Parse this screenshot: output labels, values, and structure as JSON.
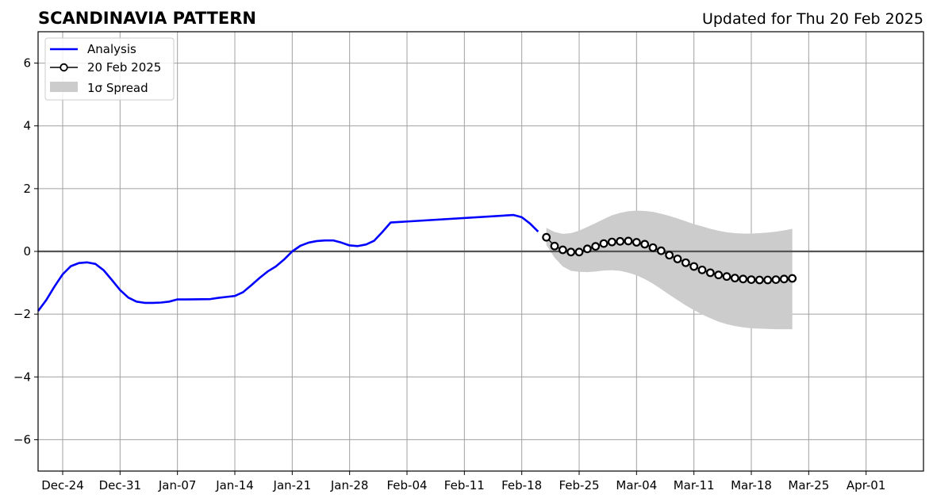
{
  "chart_data": {
    "type": "line",
    "title": "SCANDINAVIA PATTERN",
    "subtitle": "Updated for Thu 20 Feb 2025",
    "xlabel": "",
    "ylabel": "",
    "year": 2025,
    "xlim": [
      "2024-12-21",
      "2025-04-08"
    ],
    "ylim": [
      -7,
      7
    ],
    "y_ticks": [
      "6",
      "4",
      "2",
      "0",
      "−2",
      "−4",
      "−6"
    ],
    "y_tick_values": [
      6,
      4,
      2,
      0,
      -2,
      -4,
      -6
    ],
    "x_tick_dates": [
      "2024-12-24",
      "2024-12-31",
      "2025-01-07",
      "2025-01-14",
      "2025-01-21",
      "2025-01-28",
      "2025-02-04",
      "2025-02-11",
      "2025-02-18",
      "2025-02-25",
      "2025-03-04",
      "2025-03-11",
      "2025-03-18",
      "2025-03-25",
      "2025-04-01"
    ],
    "x_tick_labels": [
      "Dec-24",
      "Dec-31",
      "Jan-07",
      "Jan-14",
      "Jan-21",
      "Jan-28",
      "Feb-04",
      "Feb-11",
      "Feb-18",
      "Feb-25",
      "Mar-04",
      "Mar-11",
      "Mar-18",
      "Mar-25",
      "Apr-01"
    ],
    "grid": true,
    "zero_line": true,
    "legend_position": "top-left",
    "legend": [
      "Analysis",
      "20 Feb 2025",
      "1σ Spread"
    ],
    "colors": {
      "analysis": "#0000ff",
      "forecast_line": "#000000",
      "forecast_marker_fill": "#ffffff",
      "spread": "#cccccc",
      "grid": "#a0a0a0"
    },
    "series": [
      {
        "name": "Analysis",
        "x": [
          "2024-12-21",
          "2024-12-22",
          "2024-12-23",
          "2024-12-24",
          "2024-12-25",
          "2024-12-26",
          "2024-12-27",
          "2024-12-28",
          "2024-12-29",
          "2024-12-30",
          "2024-12-31",
          "2025-01-01",
          "2025-01-02",
          "2025-01-03",
          "2025-01-04",
          "2025-01-05",
          "2025-01-06",
          "2025-01-07",
          "2025-01-08",
          "2025-01-11",
          "2025-01-12",
          "2025-01-13",
          "2025-01-14",
          "2025-01-15",
          "2025-01-16",
          "2025-01-17",
          "2025-01-18",
          "2025-01-19",
          "2025-01-20",
          "2025-01-21",
          "2025-01-22",
          "2025-01-23",
          "2025-01-24",
          "2025-01-25",
          "2025-01-26",
          "2025-01-27",
          "2025-01-28",
          "2025-01-29",
          "2025-01-30",
          "2025-01-31",
          "2025-02-01",
          "2025-02-02",
          "2025-02-17",
          "2025-02-18",
          "2025-02-19",
          "2025-02-20"
        ],
        "y": [
          -1.9,
          -1.55,
          -1.12,
          -0.73,
          -0.47,
          -0.37,
          -0.35,
          -0.4,
          -0.6,
          -0.91,
          -1.23,
          -1.47,
          -1.6,
          -1.64,
          -1.64,
          -1.63,
          -1.6,
          -1.53,
          -1.53,
          -1.52,
          -1.48,
          -1.45,
          -1.42,
          -1.3,
          -1.08,
          -0.85,
          -0.64,
          -0.48,
          -0.26,
          0.0,
          0.18,
          0.28,
          0.33,
          0.35,
          0.35,
          0.28,
          0.19,
          0.17,
          0.22,
          0.34,
          0.62,
          0.92,
          1.16,
          1.09,
          0.89,
          0.63
        ]
      },
      {
        "name": "20 Feb 2025",
        "x": [
          "2025-02-21",
          "2025-02-22",
          "2025-02-23",
          "2025-02-24",
          "2025-02-25",
          "2025-02-26",
          "2025-02-27",
          "2025-02-28",
          "2025-03-01",
          "2025-03-02",
          "2025-03-03",
          "2025-03-04",
          "2025-03-05",
          "2025-03-06",
          "2025-03-07",
          "2025-03-08",
          "2025-03-09",
          "2025-03-10",
          "2025-03-11",
          "2025-03-12",
          "2025-03-13",
          "2025-03-14",
          "2025-03-15",
          "2025-03-16",
          "2025-03-17",
          "2025-03-18",
          "2025-03-19",
          "2025-03-20",
          "2025-03-21",
          "2025-03-22",
          "2025-03-23"
        ],
        "y": [
          0.45,
          0.17,
          0.05,
          -0.02,
          -0.02,
          0.08,
          0.16,
          0.25,
          0.3,
          0.32,
          0.33,
          0.29,
          0.23,
          0.12,
          0.02,
          -0.12,
          -0.24,
          -0.36,
          -0.48,
          -0.59,
          -0.68,
          -0.75,
          -0.8,
          -0.85,
          -0.88,
          -0.9,
          -0.91,
          -0.91,
          -0.9,
          -0.88,
          -0.86
        ]
      }
    ],
    "spread": {
      "name": "1σ Spread",
      "x": [
        "2025-02-21",
        "2025-02-22",
        "2025-02-23",
        "2025-02-24",
        "2025-02-25",
        "2025-02-26",
        "2025-02-27",
        "2025-02-28",
        "2025-03-01",
        "2025-03-02",
        "2025-03-03",
        "2025-03-04",
        "2025-03-05",
        "2025-03-06",
        "2025-03-07",
        "2025-03-08",
        "2025-03-09",
        "2025-03-10",
        "2025-03-11",
        "2025-03-12",
        "2025-03-13",
        "2025-03-14",
        "2025-03-15",
        "2025-03-16",
        "2025-03-17",
        "2025-03-18",
        "2025-03-19",
        "2025-03-20",
        "2025-03-21",
        "2025-03-22",
        "2025-03-23"
      ],
      "upper": [
        0.75,
        0.62,
        0.56,
        0.58,
        0.66,
        0.78,
        0.9,
        1.03,
        1.15,
        1.23,
        1.28,
        1.3,
        1.29,
        1.26,
        1.2,
        1.13,
        1.05,
        0.96,
        0.87,
        0.8,
        0.72,
        0.66,
        0.61,
        0.58,
        0.57,
        0.57,
        0.58,
        0.6,
        0.63,
        0.67,
        0.72
      ],
      "lower": [
        0.2,
        -0.2,
        -0.48,
        -0.62,
        -0.65,
        -0.66,
        -0.64,
        -0.61,
        -0.6,
        -0.62,
        -0.68,
        -0.76,
        -0.88,
        -1.03,
        -1.2,
        -1.38,
        -1.55,
        -1.72,
        -1.87,
        -2.01,
        -2.13,
        -2.24,
        -2.32,
        -2.38,
        -2.42,
        -2.45,
        -2.46,
        -2.47,
        -2.48,
        -2.48,
        -2.48
      ]
    }
  }
}
